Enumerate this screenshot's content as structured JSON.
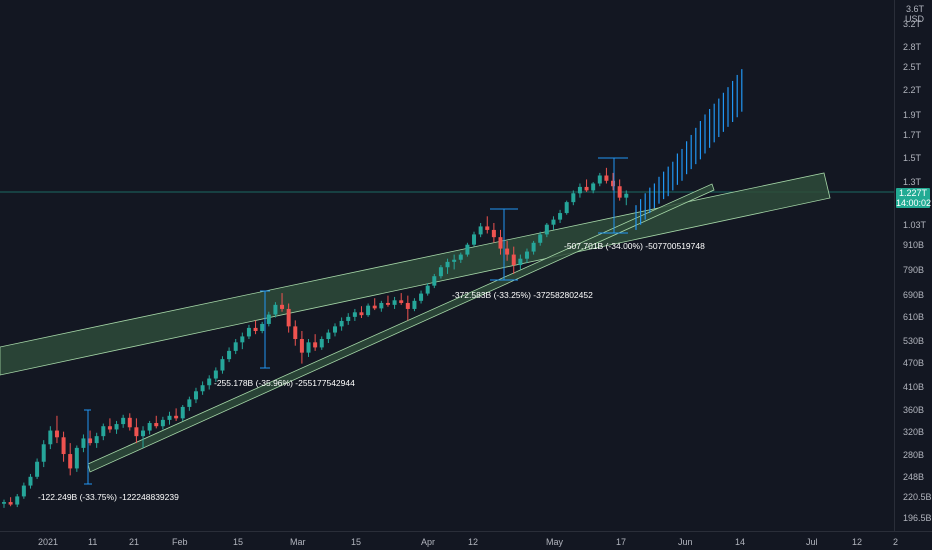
{
  "header": {
    "currency": "USD",
    "top_tick": "3.6T"
  },
  "last_price": {
    "value": "1.227T",
    "countdown": "14:00:02",
    "color": "#22ab94"
  },
  "colors": {
    "up": "#26a69a",
    "down": "#ef5350",
    "projection": "#2196f3",
    "channel_fill": "#2e4b3a",
    "channel_stroke": "#a5d6a7",
    "background": "#131722"
  },
  "chart_data": {
    "type": "candlestick",
    "ylim_usd": [
      190000000000,
      3600000000000
    ],
    "y_scale": "log",
    "y_ticks": [
      {
        "label": "3.2T",
        "value": 3200000000000.0
      },
      {
        "label": "2.8T",
        "value": 2800000000000.0
      },
      {
        "label": "2.5T",
        "value": 2500000000000.0
      },
      {
        "label": "2.2T",
        "value": 2200000000000.0
      },
      {
        "label": "1.9T",
        "value": 1900000000000.0
      },
      {
        "label": "1.7T",
        "value": 1700000000000.0
      },
      {
        "label": "1.5T",
        "value": 1500000000000.0
      },
      {
        "label": "1.3T",
        "value": 1300000000000.0
      },
      {
        "label": "1.03T",
        "value": 1030000000000.0
      },
      {
        "label": "910B",
        "value": 910000000000.0
      },
      {
        "label": "790B",
        "value": 790000000000.0
      },
      {
        "label": "690B",
        "value": 690000000000.0
      },
      {
        "label": "610B",
        "value": 610000000000.0
      },
      {
        "label": "530B",
        "value": 530000000000.0
      },
      {
        "label": "470B",
        "value": 470000000000.0
      },
      {
        "label": "410B",
        "value": 410000000000.0
      },
      {
        "label": "360B",
        "value": 360000000000.0
      },
      {
        "label": "320B",
        "value": 320000000000.0
      },
      {
        "label": "280B",
        "value": 280000000000.0
      },
      {
        "label": "248B",
        "value": 248000000000.0
      },
      {
        "label": "220.5B",
        "value": 220500000000.0
      },
      {
        "label": "196.5B",
        "value": 196500000000.0
      }
    ],
    "x_ticks": [
      {
        "label": "2021",
        "day": 0
      },
      {
        "label": "11",
        "day": 10
      },
      {
        "label": "21",
        "day": 20
      },
      {
        "label": "Feb",
        "day": 31
      },
      {
        "label": "15",
        "day": 45
      },
      {
        "label": "Mar",
        "day": 59
      },
      {
        "label": "15",
        "day": 73
      },
      {
        "label": "Apr",
        "day": 90
      },
      {
        "label": "12",
        "day": 101
      },
      {
        "label": "May",
        "day": 120
      },
      {
        "label": "17",
        "day": 136
      },
      {
        "label": "Jun",
        "day": 151
      },
      {
        "label": "14",
        "day": 164
      },
      {
        "label": "Jul",
        "day": 181
      },
      {
        "label": "12",
        "day": 192
      },
      {
        "label": "2",
        "day": 203
      }
    ],
    "last_value": 1227000000000.0,
    "candles_ohlc_usd": [
      [
        213000000000.0,
        218000000000.0,
        208000000000.0,
        215000000000.0
      ],
      [
        215000000000.0,
        221000000000.0,
        210000000000.0,
        212000000000.0
      ],
      [
        212000000000.0,
        225000000000.0,
        209000000000.0,
        222000000000.0
      ],
      [
        222000000000.0,
        240000000000.0,
        219000000000.0,
        236000000000.0
      ],
      [
        236000000000.0,
        252000000000.0,
        232000000000.0,
        248000000000.0
      ],
      [
        248000000000.0,
        275000000000.0,
        245000000000.0,
        270000000000.0
      ],
      [
        270000000000.0,
        305000000000.0,
        262000000000.0,
        298000000000.0
      ],
      [
        298000000000.0,
        330000000000.0,
        290000000000.0,
        322000000000.0
      ],
      [
        322000000000.0,
        350000000000.0,
        300000000000.0,
        310000000000.0
      ],
      [
        310000000000.0,
        320000000000.0,
        270000000000.0,
        282000000000.0
      ],
      [
        282000000000.0,
        300000000000.0,
        250000000000.0,
        260000000000.0
      ],
      [
        260000000000.0,
        296000000000.0,
        255000000000.0,
        292000000000.0
      ],
      [
        292000000000.0,
        315000000000.0,
        285000000000.0,
        308000000000.0
      ],
      [
        308000000000.0,
        322000000000.0,
        296000000000.0,
        300000000000.0
      ],
      [
        300000000000.0,
        318000000000.0,
        292000000000.0,
        312000000000.0
      ],
      [
        312000000000.0,
        335000000000.0,
        305000000000.0,
        330000000000.0
      ],
      [
        330000000000.0,
        345000000000.0,
        318000000000.0,
        324000000000.0
      ],
      [
        324000000000.0,
        340000000000.0,
        316000000000.0,
        334000000000.0
      ],
      [
        334000000000.0,
        352000000000.0,
        327000000000.0,
        346000000000.0
      ],
      [
        346000000000.0,
        355000000000.0,
        322000000000.0,
        328000000000.0
      ],
      [
        328000000000.0,
        345000000000.0,
        300000000000.0,
        312000000000.0
      ],
      [
        312000000000.0,
        330000000000.0,
        292000000000.0,
        322000000000.0
      ],
      [
        322000000000.0,
        340000000000.0,
        315000000000.0,
        336000000000.0
      ],
      [
        336000000000.0,
        350000000000.0,
        326000000000.0,
        330000000000.0
      ],
      [
        330000000000.0,
        348000000000.0,
        324000000000.0,
        342000000000.0
      ],
      [
        342000000000.0,
        358000000000.0,
        333000000000.0,
        350000000000.0
      ],
      [
        350000000000.0,
        365000000000.0,
        340000000000.0,
        345000000000.0
      ],
      [
        345000000000.0,
        372000000000.0,
        340000000000.0,
        368000000000.0
      ],
      [
        368000000000.0,
        390000000000.0,
        360000000000.0,
        384000000000.0
      ],
      [
        384000000000.0,
        410000000000.0,
        376000000000.0,
        402000000000.0
      ],
      [
        402000000000.0,
        425000000000.0,
        394000000000.0,
        416000000000.0
      ],
      [
        416000000000.0,
        440000000000.0,
        406000000000.0,
        432000000000.0
      ],
      [
        432000000000.0,
        460000000000.0,
        424000000000.0,
        452000000000.0
      ],
      [
        452000000000.0,
        490000000000.0,
        444000000000.0,
        482000000000.0
      ],
      [
        482000000000.0,
        515000000000.0,
        474000000000.0,
        505000000000.0
      ],
      [
        505000000000.0,
        540000000000.0,
        496000000000.0,
        530000000000.0
      ],
      [
        530000000000.0,
        560000000000.0,
        510000000000.0,
        548000000000.0
      ],
      [
        548000000000.0,
        585000000000.0,
        540000000000.0,
        575000000000.0
      ],
      [
        575000000000.0,
        600000000000.0,
        555000000000.0,
        565000000000.0
      ],
      [
        565000000000.0,
        595000000000.0,
        558000000000.0,
        588000000000.0
      ],
      [
        588000000000.0,
        630000000000.0,
        580000000000.0,
        620000000000.0
      ],
      [
        620000000000.0,
        665000000000.0,
        610000000000.0,
        655000000000.0
      ],
      [
        655000000000.0,
        700000000000.0,
        630000000000.0,
        640000000000.0
      ],
      [
        640000000000.0,
        660000000000.0,
        560000000000.0,
        580000000000.0
      ],
      [
        580000000000.0,
        600000000000.0,
        520000000000.0,
        540000000000.0
      ],
      [
        540000000000.0,
        565000000000.0,
        470000000000.0,
        500000000000.0
      ],
      [
        500000000000.0,
        540000000000.0,
        488000000000.0,
        530000000000.0
      ],
      [
        530000000000.0,
        555000000000.0,
        505000000000.0,
        515000000000.0
      ],
      [
        515000000000.0,
        548000000000.0,
        508000000000.0,
        540000000000.0
      ],
      [
        540000000000.0,
        570000000000.0,
        528000000000.0,
        560000000000.0
      ],
      [
        560000000000.0,
        590000000000.0,
        548000000000.0,
        580000000000.0
      ],
      [
        580000000000.0,
        610000000000.0,
        566000000000.0,
        598000000000.0
      ],
      [
        598000000000.0,
        625000000000.0,
        585000000000.0,
        612000000000.0
      ],
      [
        612000000000.0,
        640000000000.0,
        598000000000.0,
        628000000000.0
      ],
      [
        628000000000.0,
        650000000000.0,
        608000000000.0,
        618000000000.0
      ],
      [
        618000000000.0,
        660000000000.0,
        612000000000.0,
        652000000000.0
      ],
      [
        652000000000.0,
        680000000000.0,
        636000000000.0,
        642000000000.0
      ],
      [
        642000000000.0,
        670000000000.0,
        630000000000.0,
        662000000000.0
      ],
      [
        662000000000.0,
        690000000000.0,
        648000000000.0,
        655000000000.0
      ],
      [
        655000000000.0,
        685000000000.0,
        640000000000.0,
        672000000000.0
      ],
      [
        672000000000.0,
        700000000000.0,
        655000000000.0,
        662000000000.0
      ],
      [
        662000000000.0,
        690000000000.0,
        600000000000.0,
        640000000000.0
      ],
      [
        640000000000.0,
        680000000000.0,
        632000000000.0,
        670000000000.0
      ],
      [
        670000000000.0,
        710000000000.0,
        660000000000.0,
        698000000000.0
      ],
      [
        698000000000.0,
        740000000000.0,
        690000000000.0,
        730000000000.0
      ],
      [
        730000000000.0,
        780000000000.0,
        720000000000.0,
        770000000000.0
      ],
      [
        770000000000.0,
        820000000000.0,
        760000000000.0,
        810000000000.0
      ],
      [
        810000000000.0,
        850000000000.0,
        780000000000.0,
        835000000000.0
      ],
      [
        835000000000.0,
        870000000000.0,
        800000000000.0,
        845000000000.0
      ],
      [
        845000000000.0,
        880000000000.0,
        830000000000.0,
        870000000000.0
      ],
      [
        870000000000.0,
        930000000000.0,
        860000000000.0,
        920000000000.0
      ],
      [
        920000000000.0,
        990000000000.0,
        910000000000.0,
        975000000000.0
      ],
      [
        975000000000.0,
        1040000000000.0,
        960000000000.0,
        1020000000000.0
      ],
      [
        1020000000000.0,
        1080000000000.0,
        980000000000.0,
        1000000000000.0
      ],
      [
        1000000000000.0,
        1040000000000.0,
        930000000000.0,
        960000000000.0
      ],
      [
        960000000000.0,
        1000000000000.0,
        870000000000.0,
        900000000000.0
      ],
      [
        900000000000.0,
        940000000000.0,
        840000000000.0,
        870000000000.0
      ],
      [
        870000000000.0,
        910000000000.0,
        780000000000.0,
        820000000000.0
      ],
      [
        820000000000.0,
        870000000000.0,
        800000000000.0,
        850000000000.0
      ],
      [
        850000000000.0,
        900000000000.0,
        830000000000.0,
        885000000000.0
      ],
      [
        885000000000.0,
        940000000000.0,
        870000000000.0,
        930000000000.0
      ],
      [
        930000000000.0,
        990000000000.0,
        915000000000.0,
        975000000000.0
      ],
      [
        975000000000.0,
        1040000000000.0,
        960000000000.0,
        1030000000000.0
      ],
      [
        1030000000000.0,
        1080000000000.0,
        1000000000000.0,
        1060000000000.0
      ],
      [
        1060000000000.0,
        1120000000000.0,
        1040000000000.0,
        1100000000000.0
      ],
      [
        1100000000000.0,
        1180000000000.0,
        1090000000000.0,
        1170000000000.0
      ],
      [
        1170000000000.0,
        1250000000000.0,
        1150000000000.0,
        1230000000000.0
      ],
      [
        1230000000000.0,
        1300000000000.0,
        1200000000000.0,
        1275000000000.0
      ],
      [
        1275000000000.0,
        1330000000000.0,
        1240000000000.0,
        1250000000000.0
      ],
      [
        1250000000000.0,
        1310000000000.0,
        1230000000000.0,
        1300000000000.0
      ],
      [
        1300000000000.0,
        1380000000000.0,
        1280000000000.0,
        1360000000000.0
      ],
      [
        1360000000000.0,
        1420000000000.0,
        1300000000000.0,
        1320000000000.0
      ],
      [
        1320000000000.0,
        1380000000000.0,
        1250000000000.0,
        1280000000000.0
      ],
      [
        1280000000000.0,
        1330000000000.0,
        1180000000000.0,
        1200000000000.0
      ],
      [
        1200000000000.0,
        1250000000000.0,
        1150000000000.0,
        1227000000000.0
      ]
    ],
    "projection_bars_usd": [
      [
        1000000000000.0,
        1150000000000.0
      ],
      [
        1030000000000.0,
        1190000000000.0
      ],
      [
        1060000000000.0,
        1230000000000.0
      ],
      [
        1100000000000.0,
        1270000000000.0
      ],
      [
        1130000000000.0,
        1300000000000.0
      ],
      [
        1160000000000.0,
        1350000000000.0
      ],
      [
        1190000000000.0,
        1390000000000.0
      ],
      [
        1210000000000.0,
        1430000000000.0
      ],
      [
        1250000000000.0,
        1470000000000.0
      ],
      [
        1290000000000.0,
        1540000000000.0
      ],
      [
        1320000000000.0,
        1580000000000.0
      ],
      [
        1370000000000.0,
        1650000000000.0
      ],
      [
        1410000000000.0,
        1710000000000.0
      ],
      [
        1450000000000.0,
        1780000000000.0
      ],
      [
        1490000000000.0,
        1850000000000.0
      ],
      [
        1540000000000.0,
        1920000000000.0
      ],
      [
        1590000000000.0,
        1980000000000.0
      ],
      [
        1640000000000.0,
        2040000000000.0
      ],
      [
        1690000000000.0,
        2100000000000.0
      ],
      [
        1740000000000.0,
        2170000000000.0
      ],
      [
        1790000000000.0,
        2240000000000.0
      ],
      [
        1840000000000.0,
        2320000000000.0
      ],
      [
        1890000000000.0,
        2400000000000.0
      ],
      [
        1950000000000.0,
        2480000000000.0
      ]
    ],
    "annotations": [
      {
        "text": "-122.249B (-33.75%) -122248839239",
        "day": 9,
        "value": 227000000000.0
      },
      {
        "text": "-255.178B (-35.96%) -255177542944",
        "day": 53,
        "value": 412000000000.0
      },
      {
        "text": "-372.583B (-33.25%) -372582802452",
        "day": 103,
        "value": 680000000000.0
      },
      {
        "text": "-507.701B (-34.00%) -507700519748",
        "day": 138,
        "value": 875000000000.0
      }
    ]
  }
}
